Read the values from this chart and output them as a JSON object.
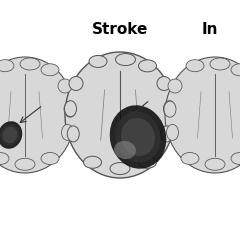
{
  "title": "",
  "background_color": "#ffffff",
  "labels": [
    "Stroke",
    "In"
  ],
  "label_fontsize": 11,
  "label_fontweight": "bold",
  "brain_color": "#d8d8d8",
  "brain_edge_color": "#555555",
  "lesion_colors": [
    "#222222",
    "#444444",
    "#666666",
    "#888888"
  ],
  "arrow_color": "#333333",
  "figsize": [
    2.4,
    2.4
  ],
  "dpi": 100
}
